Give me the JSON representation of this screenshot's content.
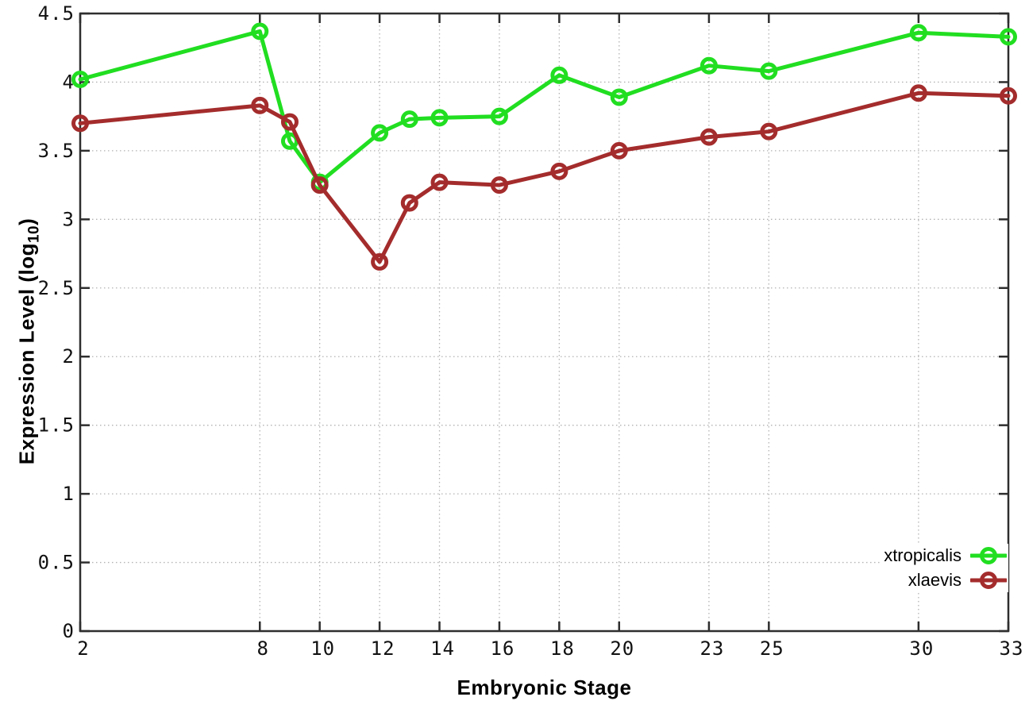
{
  "figure": {
    "xlabel": "Embryonic Stage",
    "ylabel": {
      "prefix": "Expression Level (log",
      "sub": "10",
      "suffix": ")"
    }
  },
  "chart_data": {
    "type": "line",
    "title": "",
    "xlabel": "Embryonic Stage",
    "ylabel": "Expression Level (log10)",
    "x": [
      2,
      8,
      9,
      10,
      12,
      13,
      14,
      16,
      18,
      20,
      23,
      25,
      30,
      33
    ],
    "series": [
      {
        "name": "xtropicalis",
        "color": "#21DE21",
        "values": [
          4.02,
          4.37,
          3.57,
          3.27,
          3.63,
          3.73,
          3.74,
          3.75,
          4.05,
          3.89,
          4.12,
          4.08,
          4.36,
          4.33
        ]
      },
      {
        "name": "xlaevis",
        "color": "#A42C2C",
        "values": [
          3.7,
          3.83,
          3.71,
          3.25,
          2.69,
          3.12,
          3.27,
          3.25,
          3.35,
          3.5,
          3.6,
          3.64,
          3.92,
          3.9
        ]
      }
    ],
    "xlim": [
      2,
      33
    ],
    "ylim": [
      0,
      4.5
    ],
    "x_tick_labels": [
      "2",
      "8",
      "10",
      "12",
      "14",
      "16",
      "18",
      "20",
      "23",
      "25",
      "30",
      "33"
    ],
    "x_ticks": [
      2,
      8,
      10,
      12,
      14,
      16,
      18,
      20,
      23,
      25,
      30,
      33
    ],
    "y_tick_labels": [
      "0",
      "0.5",
      "1",
      "1.5",
      "2",
      "2.5",
      "3",
      "3.5",
      "4",
      "4.5"
    ],
    "y_ticks": [
      0,
      0.5,
      1,
      1.5,
      2,
      2.5,
      3,
      3.5,
      4,
      4.5
    ],
    "grid": true,
    "marker": "open-circle",
    "legend_position": "bottom-right"
  },
  "legend": {
    "items": [
      {
        "label": "xtropicalis",
        "color": "#21DE21"
      },
      {
        "label": "xlaevis",
        "color": "#A42C2C"
      }
    ]
  },
  "style": {
    "background": "#ffffff",
    "axis": "#2e2e2e",
    "grid": "#b3b3b3",
    "tick_label": "#111111"
  }
}
